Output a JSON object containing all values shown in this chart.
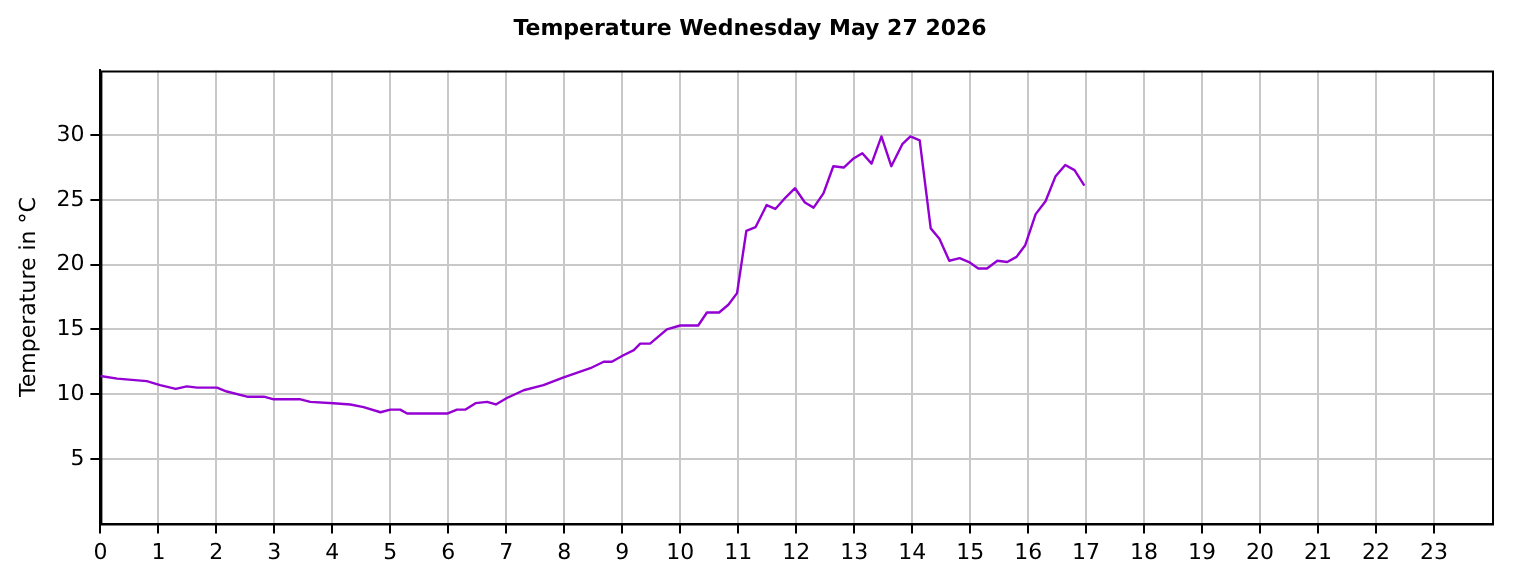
{
  "chart_data": {
    "type": "line",
    "title": "Temperature Wednesday May 27 2026",
    "ylabel": "Temperature in °C",
    "xlim": [
      0,
      24
    ],
    "xticks": [
      0,
      1,
      2,
      3,
      4,
      5,
      6,
      7,
      8,
      9,
      10,
      11,
      12,
      13,
      14,
      15,
      16,
      17,
      18,
      19,
      20,
      21,
      22,
      23
    ],
    "ylim": [
      0,
      35
    ],
    "yticks": [
      5,
      10,
      15,
      20,
      25,
      30
    ],
    "grid": true,
    "legend": false,
    "marker": "none",
    "line_style": "solid",
    "series": [
      {
        "color": "#9400d3",
        "x": [
          0,
          0.29,
          0.8,
          1.03,
          1.3,
          1.49,
          1.67,
          2.01,
          2.18,
          2.53,
          2.82,
          2.99,
          3.45,
          3.62,
          4.02,
          4.31,
          4.54,
          4.83,
          5.0,
          5.17,
          5.29,
          5.98,
          6.15,
          6.29,
          6.47,
          6.67,
          6.82,
          7.01,
          7.3,
          7.64,
          7.99,
          8.45,
          8.68,
          8.82,
          9.02,
          9.2,
          9.31,
          9.48,
          9.77,
          10.0,
          10.31,
          10.46,
          10.67,
          10.83,
          10.98,
          11.14,
          11.3,
          11.49,
          11.64,
          11.82,
          11.98,
          12.15,
          12.3,
          12.47,
          12.64,
          12.82,
          12.99,
          13.14,
          13.3,
          13.47,
          13.64,
          13.83,
          13.97,
          14.13,
          14.32,
          14.47,
          14.64,
          14.82,
          14.98,
          15.14,
          15.29,
          15.47,
          15.64,
          15.8,
          15.95,
          16.13,
          16.3,
          16.47,
          16.64,
          16.8,
          16.97
        ],
        "values": [
          11.4,
          11.2,
          11.0,
          10.7,
          10.4,
          10.6,
          10.5,
          10.5,
          10.2,
          9.8,
          9.8,
          9.6,
          9.6,
          9.4,
          9.3,
          9.2,
          9.0,
          8.6,
          8.8,
          8.8,
          8.5,
          8.5,
          8.8,
          8.8,
          9.3,
          9.4,
          9.2,
          9.7,
          10.3,
          10.7,
          11.3,
          12.0,
          12.5,
          12.5,
          13.0,
          13.4,
          13.9,
          13.9,
          15.0,
          15.3,
          15.3,
          16.3,
          16.3,
          16.9,
          17.8,
          22.6,
          22.9,
          24.6,
          24.3,
          25.2,
          25.9,
          24.8,
          24.4,
          25.5,
          27.6,
          27.5,
          28.2,
          28.6,
          27.8,
          29.9,
          27.6,
          29.3,
          29.9,
          29.6,
          22.8,
          22.0,
          20.3,
          20.5,
          20.2,
          19.7,
          19.7,
          20.3,
          20.2,
          20.6,
          21.5,
          23.9,
          24.9,
          26.8,
          27.7,
          27.3,
          26.1
        ]
      }
    ]
  }
}
